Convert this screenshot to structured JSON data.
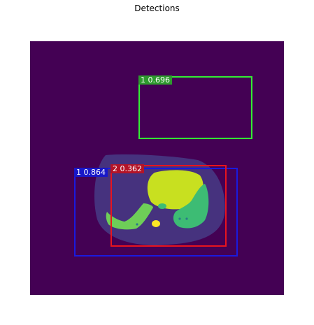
{
  "title": "Detections",
  "colors": {
    "background": "#440154",
    "body": "#46327e",
    "liver": "#c8e020",
    "organ_green": "#3dbc74",
    "organ_green_light": "#6ece58",
    "spine": "#fde725",
    "green_box": "#33ee33",
    "blue_box": "#1a1adf",
    "red_box": "#e8141e",
    "green_label_bg": "#2e9a2e",
    "blue_label_bg": "#1818c8",
    "red_label_bg": "#b41428"
  },
  "detections": [
    {
      "label": "1 0.696",
      "color": "green"
    },
    {
      "label": "1 0.864",
      "color": "blue"
    },
    {
      "label": "2 0.362",
      "color": "red"
    }
  ]
}
